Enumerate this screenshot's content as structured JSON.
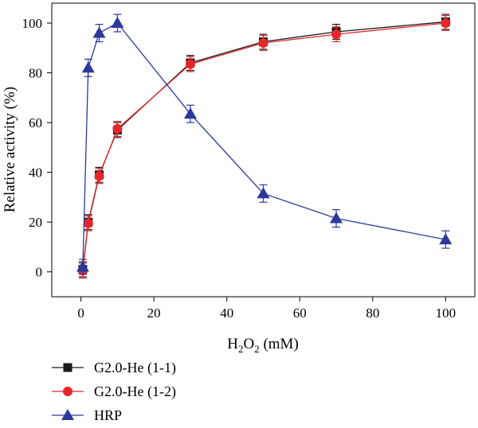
{
  "chart_data": {
    "type": "line",
    "title": "",
    "xlabel_parts": [
      "H",
      "2",
      "O",
      "2",
      " (mM)"
    ],
    "ylabel": "Relative activity (%)",
    "xlim": [
      -8,
      108
    ],
    "ylim": [
      -10,
      108
    ],
    "xticks": [
      0,
      20,
      40,
      60,
      80,
      100
    ],
    "yticks": [
      0,
      20,
      40,
      60,
      80,
      100
    ],
    "grid": false,
    "legend_position": "bottom-left, below plot",
    "series": [
      {
        "name": "G2.0-He (1-1)",
        "color": "#1a1a1a",
        "marker": "square",
        "x": [
          0.5,
          2,
          5,
          10,
          30,
          50,
          70,
          100
        ],
        "y": [
          1,
          20,
          39,
          57,
          84,
          92.5,
          96.5,
          100.5
        ],
        "err": [
          3,
          3,
          3,
          3,
          3,
          3,
          3,
          3
        ]
      },
      {
        "name": "G2.0-He (1-2)",
        "color": "#e8262a",
        "marker": "circle",
        "x": [
          0.5,
          2,
          5,
          10,
          30,
          50,
          70,
          100
        ],
        "y": [
          0.5,
          19.5,
          38.5,
          57.5,
          83.5,
          92,
          95.5,
          100
        ],
        "err": [
          3,
          3,
          3,
          3,
          3,
          3,
          3,
          3
        ]
      },
      {
        "name": "HRP",
        "color": "#2b3a9a",
        "marker": "triangle",
        "x": [
          0.5,
          2,
          5,
          10,
          30,
          50,
          70,
          100
        ],
        "y": [
          2,
          82,
          96,
          100,
          63.5,
          31.5,
          21.5,
          13
        ],
        "err": [
          3,
          3.5,
          3.5,
          3.5,
          3.5,
          3.5,
          3.5,
          3.5
        ]
      }
    ]
  }
}
